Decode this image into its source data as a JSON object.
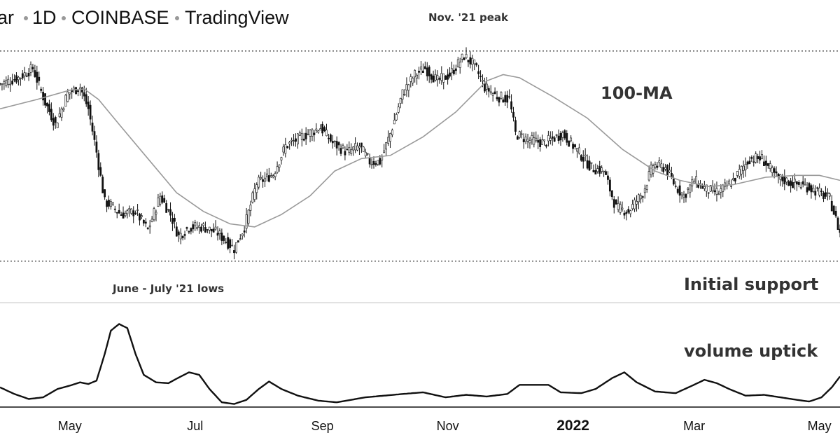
{
  "header": {
    "parts": [
      "ar",
      "1D",
      "COINBASE",
      "TradingView"
    ]
  },
  "annotations": {
    "peak": "Nov. '21 peak",
    "lows": "June - July '21 lows",
    "ma": "100-MA",
    "support": "Initial support",
    "volume": "volume uptick"
  },
  "chart_data": {
    "type": "candlestick",
    "x_axis": {
      "ticks": [
        {
          "label": "May",
          "date": "2021-05-01",
          "bold": false
        },
        {
          "label": "Jul",
          "date": "2021-07-01",
          "bold": false
        },
        {
          "label": "Sep",
          "date": "2021-09-01",
          "bold": false
        },
        {
          "label": "Nov",
          "date": "2021-11-01",
          "bold": false
        },
        {
          "label": "2022",
          "date": "2022-01-01",
          "bold": true
        },
        {
          "label": "Mar",
          "date": "2022-03-01",
          "bold": false
        },
        {
          "label": "May",
          "date": "2022-05-01",
          "bold": false
        }
      ],
      "range": [
        "2021-03-28",
        "2022-05-11"
      ]
    },
    "price": {
      "ylim": [
        0.61,
        1.0
      ],
      "reference_levels": [
        {
          "name": "peak",
          "value": 0.963
        },
        {
          "name": "support",
          "value": 0.625
        }
      ],
      "close_path": [
        {
          "date": "2021-03-28",
          "value": 0.91
        },
        {
          "date": "2021-04-06",
          "value": 0.92
        },
        {
          "date": "2021-04-13",
          "value": 0.935
        },
        {
          "date": "2021-04-19",
          "value": 0.88
        },
        {
          "date": "2021-04-24",
          "value": 0.845
        },
        {
          "date": "2021-04-30",
          "value": 0.895
        },
        {
          "date": "2021-05-06",
          "value": 0.905
        },
        {
          "date": "2021-05-10",
          "value": 0.87
        },
        {
          "date": "2021-05-14",
          "value": 0.8
        },
        {
          "date": "2021-05-18",
          "value": 0.72
        },
        {
          "date": "2021-05-21",
          "value": 0.715
        },
        {
          "date": "2021-05-26",
          "value": 0.7
        },
        {
          "date": "2021-06-02",
          "value": 0.705
        },
        {
          "date": "2021-06-08",
          "value": 0.675
        },
        {
          "date": "2021-06-14",
          "value": 0.73
        },
        {
          "date": "2021-06-19",
          "value": 0.7
        },
        {
          "date": "2021-06-23",
          "value": 0.665
        },
        {
          "date": "2021-06-28",
          "value": 0.68
        },
        {
          "date": "2021-07-05",
          "value": 0.68
        },
        {
          "date": "2021-07-12",
          "value": 0.67
        },
        {
          "date": "2021-07-20",
          "value": 0.645
        },
        {
          "date": "2021-07-25",
          "value": 0.68
        },
        {
          "date": "2021-07-31",
          "value": 0.75
        },
        {
          "date": "2021-08-08",
          "value": 0.765
        },
        {
          "date": "2021-08-14",
          "value": 0.81
        },
        {
          "date": "2021-08-22",
          "value": 0.825
        },
        {
          "date": "2021-08-31",
          "value": 0.84
        },
        {
          "date": "2021-09-06",
          "value": 0.815
        },
        {
          "date": "2021-09-13",
          "value": 0.8
        },
        {
          "date": "2021-09-19",
          "value": 0.81
        },
        {
          "date": "2021-09-24",
          "value": 0.785
        },
        {
          "date": "2021-09-29",
          "value": 0.785
        },
        {
          "date": "2021-10-04",
          "value": 0.83
        },
        {
          "date": "2021-10-10",
          "value": 0.895
        },
        {
          "date": "2021-10-16",
          "value": 0.925
        },
        {
          "date": "2021-10-21",
          "value": 0.935
        },
        {
          "date": "2021-10-27",
          "value": 0.915
        },
        {
          "date": "2021-11-02",
          "value": 0.925
        },
        {
          "date": "2021-11-09",
          "value": 0.955
        },
        {
          "date": "2021-11-14",
          "value": 0.94
        },
        {
          "date": "2021-11-19",
          "value": 0.905
        },
        {
          "date": "2021-11-25",
          "value": 0.89
        },
        {
          "date": "2021-12-01",
          "value": 0.885
        },
        {
          "date": "2021-12-04",
          "value": 0.83
        },
        {
          "date": "2021-12-10",
          "value": 0.82
        },
        {
          "date": "2021-12-18",
          "value": 0.815
        },
        {
          "date": "2021-12-27",
          "value": 0.83
        },
        {
          "date": "2022-01-05",
          "value": 0.795
        },
        {
          "date": "2022-01-10",
          "value": 0.775
        },
        {
          "date": "2022-01-16",
          "value": 0.77
        },
        {
          "date": "2022-01-22",
          "value": 0.71
        },
        {
          "date": "2022-01-28",
          "value": 0.705
        },
        {
          "date": "2022-02-04",
          "value": 0.735
        },
        {
          "date": "2022-02-09",
          "value": 0.78
        },
        {
          "date": "2022-02-15",
          "value": 0.775
        },
        {
          "date": "2022-02-20",
          "value": 0.745
        },
        {
          "date": "2022-02-24",
          "value": 0.73
        },
        {
          "date": "2022-03-01",
          "value": 0.755
        },
        {
          "date": "2022-03-07",
          "value": 0.74
        },
        {
          "date": "2022-03-13",
          "value": 0.735
        },
        {
          "date": "2022-03-20",
          "value": 0.755
        },
        {
          "date": "2022-03-28",
          "value": 0.79
        },
        {
          "date": "2022-04-03",
          "value": 0.79
        },
        {
          "date": "2022-04-10",
          "value": 0.76
        },
        {
          "date": "2022-04-18",
          "value": 0.75
        },
        {
          "date": "2022-04-25",
          "value": 0.745
        },
        {
          "date": "2022-05-01",
          "value": 0.735
        },
        {
          "date": "2022-05-06",
          "value": 0.725
        },
        {
          "date": "2022-05-11",
          "value": 0.67
        }
      ],
      "ma100_path": [
        {
          "date": "2021-03-28",
          "value": 0.87
        },
        {
          "date": "2021-04-15",
          "value": 0.885
        },
        {
          "date": "2021-05-01",
          "value": 0.9
        },
        {
          "date": "2021-05-08",
          "value": 0.902
        },
        {
          "date": "2021-05-15",
          "value": 0.885
        },
        {
          "date": "2021-05-25",
          "value": 0.845
        },
        {
          "date": "2021-06-08",
          "value": 0.79
        },
        {
          "date": "2021-06-22",
          "value": 0.735
        },
        {
          "date": "2021-07-05",
          "value": 0.705
        },
        {
          "date": "2021-07-18",
          "value": 0.685
        },
        {
          "date": "2021-07-30",
          "value": 0.68
        },
        {
          "date": "2021-08-12",
          "value": 0.7
        },
        {
          "date": "2021-08-26",
          "value": 0.73
        },
        {
          "date": "2021-09-07",
          "value": 0.77
        },
        {
          "date": "2021-09-20",
          "value": 0.79
        },
        {
          "date": "2021-10-04",
          "value": 0.795
        },
        {
          "date": "2021-10-20",
          "value": 0.825
        },
        {
          "date": "2021-11-05",
          "value": 0.865
        },
        {
          "date": "2021-11-20",
          "value": 0.915
        },
        {
          "date": "2021-11-28",
          "value": 0.925
        },
        {
          "date": "2021-12-06",
          "value": 0.92
        },
        {
          "date": "2021-12-22",
          "value": 0.89
        },
        {
          "date": "2022-01-08",
          "value": 0.855
        },
        {
          "date": "2022-01-25",
          "value": 0.805
        },
        {
          "date": "2022-02-10",
          "value": 0.77
        },
        {
          "date": "2022-02-22",
          "value": 0.755
        },
        {
          "date": "2022-03-08",
          "value": 0.745
        },
        {
          "date": "2022-03-20",
          "value": 0.748
        },
        {
          "date": "2022-04-05",
          "value": 0.76
        },
        {
          "date": "2022-04-20",
          "value": 0.763
        },
        {
          "date": "2022-05-01",
          "value": 0.763
        },
        {
          "date": "2022-05-11",
          "value": 0.755
        }
      ]
    },
    "volume": {
      "ylim": [
        0,
        1
      ],
      "path": [
        {
          "date": "2021-03-28",
          "value": 0.22
        },
        {
          "date": "2021-04-04",
          "value": 0.14
        },
        {
          "date": "2021-04-11",
          "value": 0.08
        },
        {
          "date": "2021-04-18",
          "value": 0.1
        },
        {
          "date": "2021-04-25",
          "value": 0.2
        },
        {
          "date": "2021-05-01",
          "value": 0.24
        },
        {
          "date": "2021-05-06",
          "value": 0.28
        },
        {
          "date": "2021-05-10",
          "value": 0.26
        },
        {
          "date": "2021-05-14",
          "value": 0.3
        },
        {
          "date": "2021-05-18",
          "value": 0.62
        },
        {
          "date": "2021-05-21",
          "value": 0.9
        },
        {
          "date": "2021-05-25",
          "value": 0.98
        },
        {
          "date": "2021-05-29",
          "value": 0.93
        },
        {
          "date": "2021-06-02",
          "value": 0.62
        },
        {
          "date": "2021-06-06",
          "value": 0.37
        },
        {
          "date": "2021-06-12",
          "value": 0.28
        },
        {
          "date": "2021-06-18",
          "value": 0.27
        },
        {
          "date": "2021-06-24",
          "value": 0.35
        },
        {
          "date": "2021-06-28",
          "value": 0.4
        },
        {
          "date": "2021-07-03",
          "value": 0.37
        },
        {
          "date": "2021-07-08",
          "value": 0.2
        },
        {
          "date": "2021-07-14",
          "value": 0.04
        },
        {
          "date": "2021-07-20",
          "value": 0.02
        },
        {
          "date": "2021-07-26",
          "value": 0.07
        },
        {
          "date": "2021-08-01",
          "value": 0.2
        },
        {
          "date": "2021-08-06",
          "value": 0.29
        },
        {
          "date": "2021-08-12",
          "value": 0.2
        },
        {
          "date": "2021-08-20",
          "value": 0.12
        },
        {
          "date": "2021-08-30",
          "value": 0.06
        },
        {
          "date": "2021-09-08",
          "value": 0.04
        },
        {
          "date": "2021-09-15",
          "value": 0.07
        },
        {
          "date": "2021-09-22",
          "value": 0.1
        },
        {
          "date": "2021-10-01",
          "value": 0.12
        },
        {
          "date": "2021-10-10",
          "value": 0.14
        },
        {
          "date": "2021-10-20",
          "value": 0.16
        },
        {
          "date": "2021-10-31",
          "value": 0.1
        },
        {
          "date": "2021-11-10",
          "value": 0.13
        },
        {
          "date": "2021-11-20",
          "value": 0.11
        },
        {
          "date": "2021-11-30",
          "value": 0.14
        },
        {
          "date": "2021-12-06",
          "value": 0.25
        },
        {
          "date": "2021-12-14",
          "value": 0.25
        },
        {
          "date": "2021-12-20",
          "value": 0.25
        },
        {
          "date": "2021-12-26",
          "value": 0.16
        },
        {
          "date": "2022-01-05",
          "value": 0.15
        },
        {
          "date": "2022-01-12",
          "value": 0.2
        },
        {
          "date": "2022-01-20",
          "value": 0.33
        },
        {
          "date": "2022-01-26",
          "value": 0.4
        },
        {
          "date": "2022-02-01",
          "value": 0.28
        },
        {
          "date": "2022-02-10",
          "value": 0.17
        },
        {
          "date": "2022-02-20",
          "value": 0.15
        },
        {
          "date": "2022-02-28",
          "value": 0.24
        },
        {
          "date": "2022-03-06",
          "value": 0.31
        },
        {
          "date": "2022-03-12",
          "value": 0.27
        },
        {
          "date": "2022-03-18",
          "value": 0.2
        },
        {
          "date": "2022-03-26",
          "value": 0.12
        },
        {
          "date": "2022-04-04",
          "value": 0.13
        },
        {
          "date": "2022-04-12",
          "value": 0.1
        },
        {
          "date": "2022-04-20",
          "value": 0.07
        },
        {
          "date": "2022-04-26",
          "value": 0.05
        },
        {
          "date": "2022-05-02",
          "value": 0.1
        },
        {
          "date": "2022-05-07",
          "value": 0.22
        },
        {
          "date": "2022-05-11",
          "value": 0.35
        }
      ]
    },
    "colors": {
      "candles": "#111111",
      "ma_line": "#9a9a9a",
      "volume_line": "#111111",
      "reference_lines": "#444444",
      "divider": "#d0d0d0"
    }
  }
}
